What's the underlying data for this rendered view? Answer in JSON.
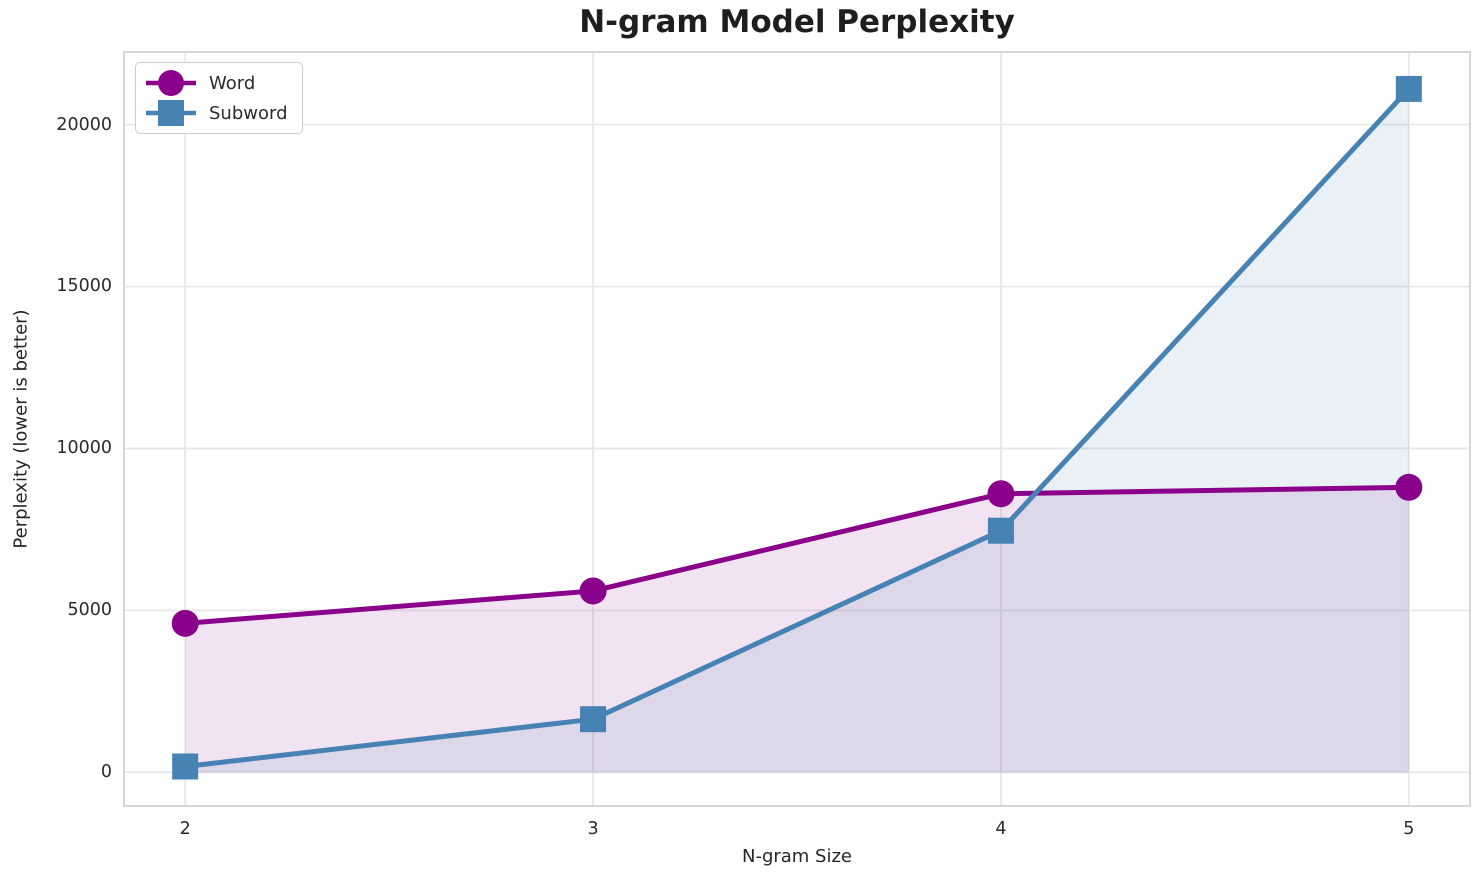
{
  "chart_data": {
    "type": "line",
    "title": "N-gram Model Perplexity",
    "xlabel": "N-gram Size",
    "ylabel": "Perplexity (lower is better)",
    "x": [
      2,
      3,
      4,
      5
    ],
    "series": [
      {
        "name": "Word",
        "marker": "circle",
        "color": "#8B008B",
        "fill_alpha": 0.11,
        "values": [
          4600,
          5600,
          8600,
          8800
        ]
      },
      {
        "name": "Subword",
        "marker": "square",
        "color": "#4682B4",
        "fill_alpha": 0.12,
        "values": [
          180,
          1640,
          7460,
          21100
        ]
      }
    ],
    "xticks": [
      "2",
      "3",
      "4",
      "5"
    ],
    "xtick_values": [
      2,
      3,
      4,
      5
    ],
    "yticks": [
      "0",
      "5000",
      "10000",
      "15000",
      "20000"
    ],
    "ytick_values": [
      0,
      5000,
      10000,
      15000,
      20000
    ],
    "xlim": [
      1.85,
      5.15
    ],
    "ylim": [
      -1040,
      22240
    ],
    "grid": true,
    "fill_to_zero": true,
    "legend": {
      "position": "upper left",
      "entries": [
        "Word",
        "Subword"
      ]
    }
  },
  "colors": {
    "grid": "#e8e8e8",
    "frame": "#d6d6d6",
    "tick_text": "#2b2b2b",
    "title_text": "#1e1e1e"
  }
}
